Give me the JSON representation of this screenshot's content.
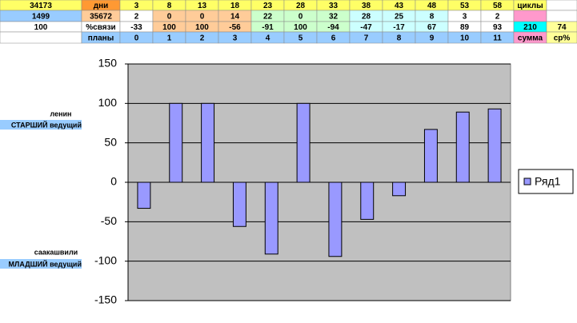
{
  "table": {
    "rows": [
      [
        34173,
        "дни",
        3,
        8,
        13,
        18,
        23,
        28,
        33,
        38,
        43,
        48,
        53,
        58,
        "циклы",
        null
      ],
      [
        1499,
        35672,
        2,
        0,
        0,
        14,
        22,
        0,
        32,
        28,
        25,
        8,
        3,
        2,
        null,
        null
      ],
      [
        100,
        "%связи",
        -33,
        100,
        100,
        -56,
        -91,
        100,
        -94,
        -47,
        -17,
        67,
        89,
        93,
        210,
        74
      ],
      [
        null,
        "планы",
        0,
        1,
        2,
        3,
        4,
        5,
        6,
        7,
        8,
        9,
        10,
        11,
        "сумма",
        "ср%"
      ]
    ]
  },
  "side_labels": {
    "top_name": "ленин",
    "top_role": "СТАРШИЙ ведущий",
    "bottom_name": "саакашвили",
    "bottom_role": "МЛАДШИЙ ведущий"
  },
  "chart_data": {
    "type": "bar",
    "series": [
      {
        "name": "Ряд1",
        "color": "#9999ff",
        "values": [
          -33,
          100,
          100,
          -56,
          -91,
          100,
          -94,
          -47,
          -17,
          67,
          89,
          93
        ]
      }
    ],
    "ylim": [
      -150,
      150
    ],
    "yticks": [
      -150,
      -100,
      -50,
      0,
      50,
      100,
      150
    ],
    "grid": true,
    "legend": "right"
  }
}
